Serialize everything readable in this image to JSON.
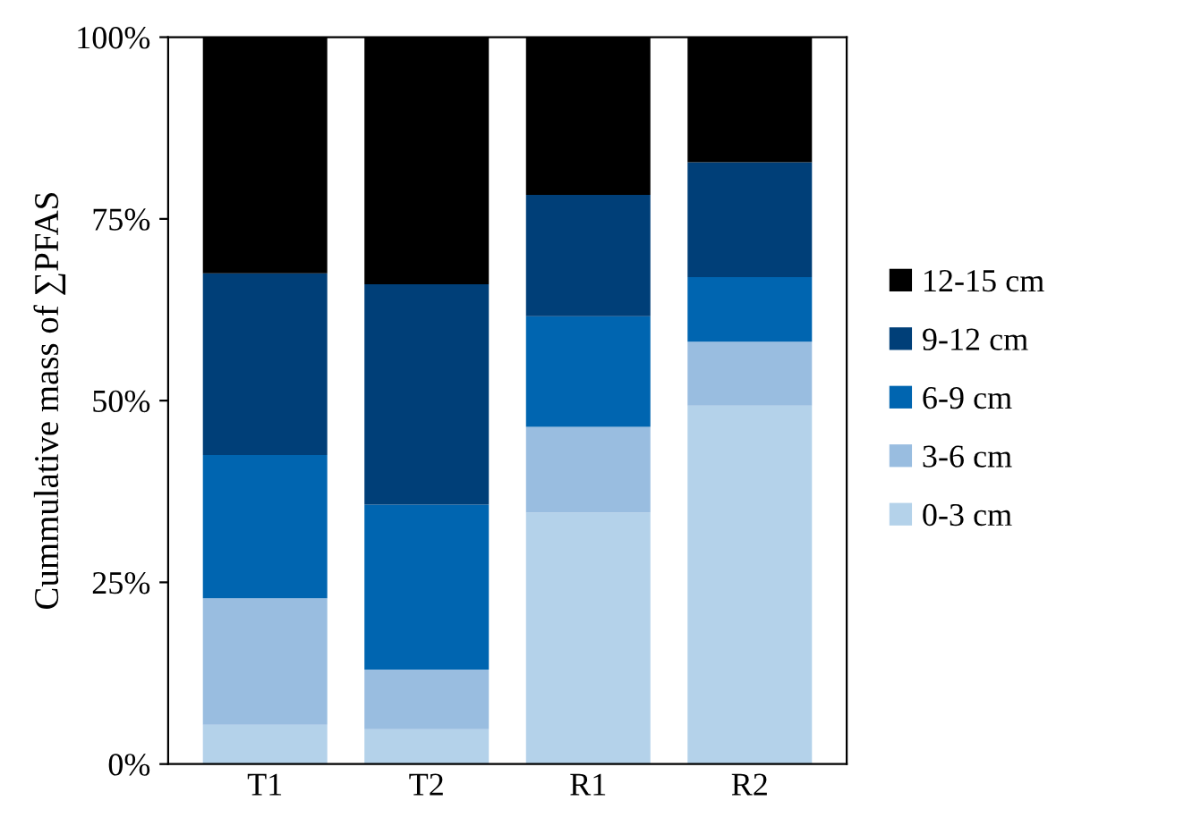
{
  "chart_data": {
    "type": "bar",
    "stacked": true,
    "ylabel": "Cummulative mass of ∑PFAS",
    "categories": [
      "T1",
      "T2",
      "R1",
      "R2"
    ],
    "series": [
      {
        "name": "0-3 cm",
        "color": "#b4d2ea",
        "values": [
          5.4,
          4.8,
          34.6,
          49.3
        ]
      },
      {
        "name": "3-6 cm",
        "color": "#99bde0",
        "values": [
          17.4,
          8.2,
          11.8,
          8.8
        ]
      },
      {
        "name": "6-9 cm",
        "color": "#0065b0",
        "values": [
          19.7,
          22.7,
          15.2,
          8.9
        ]
      },
      {
        "name": "9-12 cm",
        "color": "#003f78",
        "values": [
          25.0,
          30.3,
          16.7,
          15.8
        ]
      },
      {
        "name": "12-15 cm",
        "color": "#000000",
        "values": [
          32.5,
          34.0,
          21.7,
          17.2
        ]
      }
    ],
    "ylim": [
      0,
      100
    ],
    "yticks": [
      {
        "value": 0,
        "label": "0%"
      },
      {
        "value": 25,
        "label": "25%"
      },
      {
        "value": 50,
        "label": "50%"
      },
      {
        "value": 75,
        "label": "75%"
      },
      {
        "value": 100,
        "label": "100%"
      }
    ],
    "grid": false,
    "legend": "right"
  }
}
